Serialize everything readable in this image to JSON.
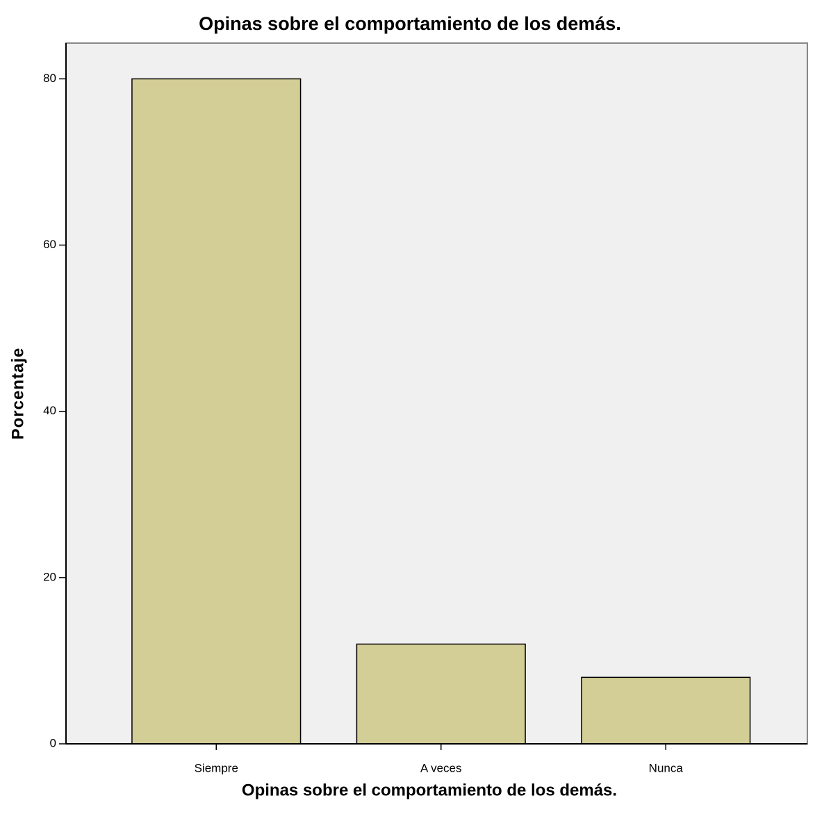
{
  "chart_data": {
    "type": "bar",
    "title": "Opinas sobre el comportamiento de los demás.",
    "x_label": "Opinas sobre el comportamiento de los demás.",
    "y_label": "Porcentaje",
    "categories": [
      "Siempre",
      "A veces",
      "Nunca"
    ],
    "values": [
      80,
      12,
      8
    ],
    "color": "#d3cd96",
    "ylim": [
      0,
      84.3
    ],
    "yticks": [
      0,
      20,
      40,
      60,
      80
    ],
    "grid": false
  }
}
